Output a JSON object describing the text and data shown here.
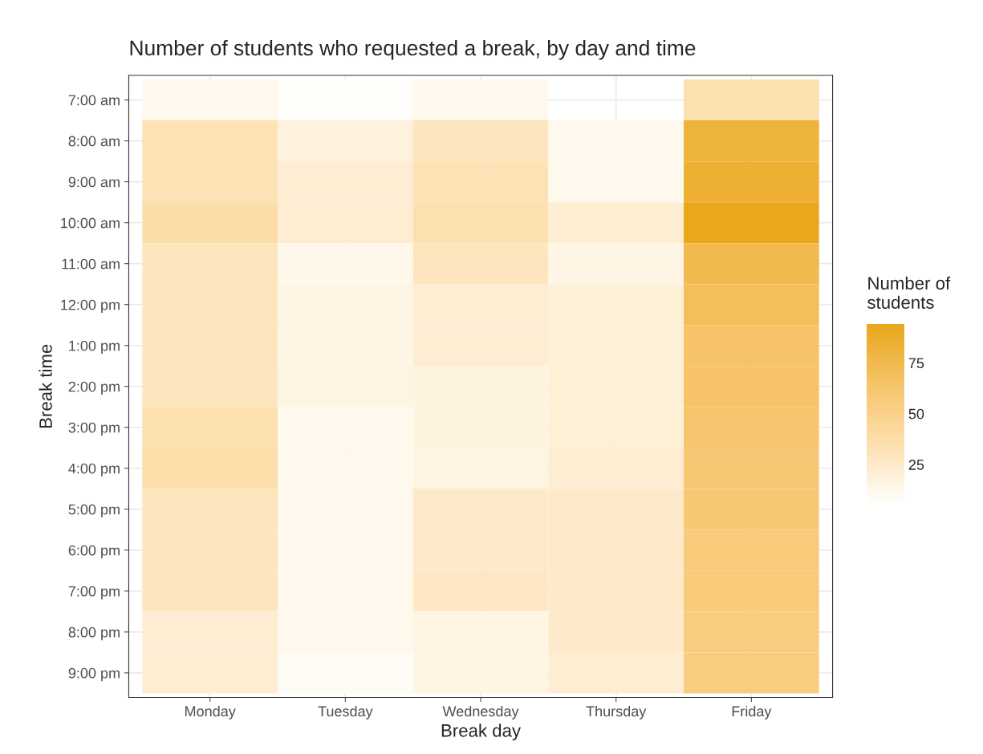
{
  "chart_data": {
    "type": "heatmap",
    "title": "Number of students who requested a break, by day and time",
    "xlabel": "Break day",
    "ylabel": "Break time",
    "clabel": "Number of\nstudents",
    "categories": [
      "Monday",
      "Tuesday",
      "Wednesday",
      "Thursday",
      "Friday"
    ],
    "y_categories": [
      "7:00 am",
      "8:00 am",
      "9:00 am",
      "10:00 am",
      "11:00 am",
      "12:00 pm",
      "1:00 pm",
      "2:00 pm",
      "3:00 pm",
      "4:00 pm",
      "5:00 pm",
      "6:00 pm",
      "7:00 pm",
      "8:00 pm",
      "9:00 pm"
    ],
    "cells": [
      [
        12,
        7,
        12,
        null,
        35
      ],
      [
        33,
        18,
        30,
        12,
        82
      ],
      [
        33,
        22,
        33,
        12,
        85
      ],
      [
        38,
        22,
        35,
        22,
        94
      ],
      [
        30,
        13,
        30,
        15,
        75
      ],
      [
        30,
        15,
        22,
        20,
        70
      ],
      [
        30,
        15,
        22,
        20,
        65
      ],
      [
        30,
        16,
        17,
        20,
        65
      ],
      [
        35,
        12,
        17,
        20,
        63
      ],
      [
        37,
        12,
        16,
        22,
        60
      ],
      [
        30,
        12,
        25,
        25,
        60
      ],
      [
        30,
        12,
        25,
        25,
        57
      ],
      [
        30,
        12,
        27,
        25,
        57
      ],
      [
        22,
        12,
        15,
        25,
        55
      ],
      [
        22,
        9,
        15,
        22,
        55
      ]
    ],
    "clim": [
      5,
      94
    ],
    "cticks": [
      25,
      50,
      75
    ],
    "grid": true
  }
}
